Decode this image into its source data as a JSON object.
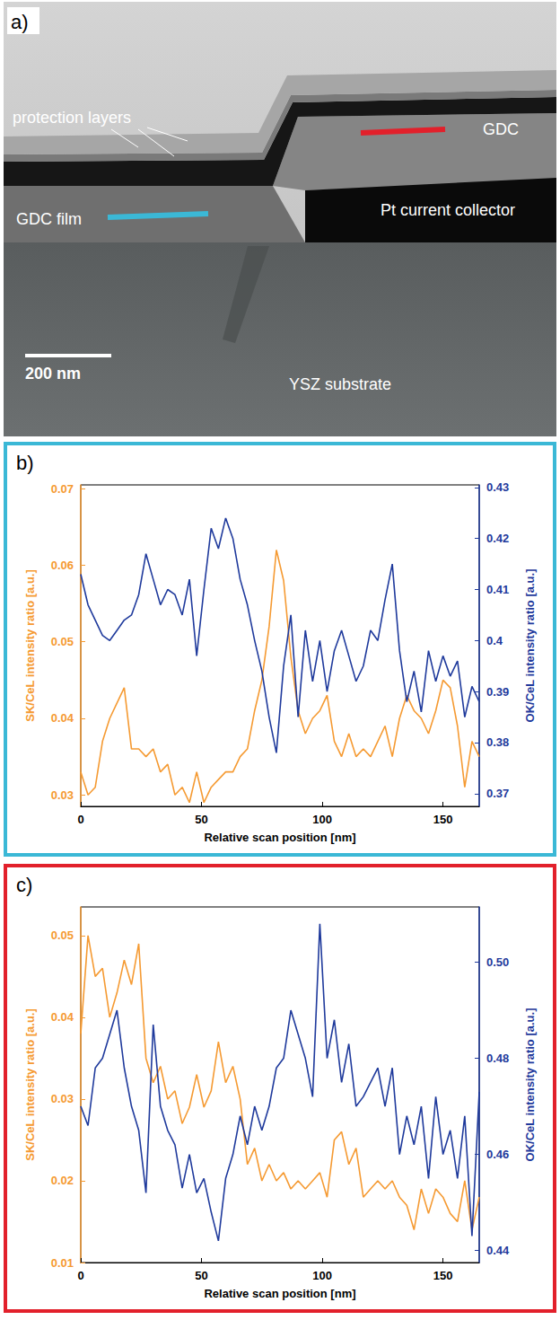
{
  "image_panel": {
    "panel_label": "a)",
    "labels": {
      "protection_layers": "protection layers",
      "gdc_film": "GDC film",
      "gdc": "GDC",
      "pt": "Pt current collector",
      "substrate": "YSZ substrate"
    },
    "scale_bar": "200 nm"
  },
  "chart_data": [
    {
      "type": "line",
      "panel_label": "b)",
      "xlabel": "Relative scan position [nm]",
      "ylabel": "SK/CeL intensity ratio [a.u.]",
      "y2label": "OK/CeL intensity ratio [a.u.]",
      "xlim": [
        0,
        165
      ],
      "xticks": [
        0,
        50,
        100,
        150
      ],
      "ylim": [
        0.0285,
        0.0705
      ],
      "yticks": [
        0.03,
        0.04,
        0.05,
        0.06,
        0.07
      ],
      "y2lim": [
        0.3675,
        0.4305
      ],
      "y2ticks": [
        0.37,
        0.38,
        0.39,
        0.4,
        0.41,
        0.42,
        0.43
      ],
      "grid": false,
      "x": [
        0,
        3,
        6,
        9,
        12,
        15,
        18,
        21,
        24,
        27,
        30,
        33,
        36,
        39,
        42,
        45,
        48,
        51,
        54,
        57,
        60,
        63,
        66,
        69,
        72,
        75,
        78,
        81,
        84,
        87,
        90,
        93,
        96,
        99,
        102,
        105,
        108,
        111,
        114,
        117,
        120,
        123,
        126,
        129,
        132,
        135,
        138,
        141,
        144,
        147,
        150,
        153,
        156,
        159,
        162,
        165
      ],
      "series": [
        {
          "color": "#f59a32",
          "axis": "y",
          "values": [
            0.033,
            0.03,
            0.031,
            0.037,
            0.04,
            0.042,
            0.044,
            0.036,
            0.036,
            0.035,
            0.036,
            0.033,
            0.034,
            0.03,
            0.031,
            0.029,
            0.033,
            0.029,
            0.031,
            0.032,
            0.033,
            0.033,
            0.035,
            0.036,
            0.041,
            0.045,
            0.052,
            0.062,
            0.058,
            0.048,
            0.041,
            0.038,
            0.04,
            0.041,
            0.043,
            0.037,
            0.035,
            0.038,
            0.035,
            0.036,
            0.035,
            0.037,
            0.039,
            0.035,
            0.04,
            0.043,
            0.041,
            0.04,
            0.038,
            0.041,
            0.045,
            0.044,
            0.039,
            0.031,
            0.037,
            0.035
          ]
        },
        {
          "color": "#1f3a9c",
          "axis": "y2",
          "values": [
            0.413,
            0.407,
            0.404,
            0.401,
            0.4,
            0.402,
            0.404,
            0.405,
            0.409,
            0.417,
            0.412,
            0.407,
            0.41,
            0.409,
            0.405,
            0.412,
            0.397,
            0.41,
            0.422,
            0.418,
            0.424,
            0.42,
            0.412,
            0.407,
            0.4,
            0.394,
            0.385,
            0.378,
            0.395,
            0.405,
            0.385,
            0.402,
            0.392,
            0.4,
            0.39,
            0.398,
            0.402,
            0.397,
            0.392,
            0.395,
            0.402,
            0.4,
            0.408,
            0.415,
            0.398,
            0.388,
            0.394,
            0.386,
            0.398,
            0.392,
            0.397,
            0.393,
            0.396,
            0.385,
            0.391,
            0.388
          ]
        }
      ]
    },
    {
      "type": "line",
      "panel_label": "c)",
      "xlabel": "Relative scan position [nm]",
      "ylabel": "SK/CeL intensity ratio [a.u.]",
      "y2label": "OK/CeL intensity ratio [a.u.]",
      "xlim": [
        0,
        165
      ],
      "xticks": [
        0,
        50,
        100,
        150
      ],
      "ylim": [
        0.01,
        0.0535
      ],
      "yticks": [
        0.01,
        0.02,
        0.03,
        0.04,
        0.05
      ],
      "y2lim": [
        0.4375,
        0.5115
      ],
      "y2ticks": [
        0.44,
        0.46,
        0.48,
        {
          "value": 0.5,
          "label": "0.50"
        }
      ],
      "grid": false,
      "x": [
        0,
        3,
        6,
        9,
        12,
        15,
        18,
        21,
        24,
        27,
        30,
        33,
        36,
        39,
        42,
        45,
        48,
        51,
        54,
        57,
        60,
        63,
        66,
        69,
        72,
        75,
        78,
        81,
        84,
        87,
        90,
        93,
        96,
        99,
        102,
        105,
        108,
        111,
        114,
        117,
        120,
        123,
        126,
        129,
        132,
        135,
        138,
        141,
        144,
        147,
        150,
        153,
        156,
        159,
        162,
        165
      ],
      "series": [
        {
          "color": "#f59a32",
          "axis": "y",
          "values": [
            0.038,
            0.05,
            0.045,
            0.046,
            0.04,
            0.043,
            0.047,
            0.044,
            0.049,
            0.035,
            0.032,
            0.034,
            0.03,
            0.031,
            0.027,
            0.029,
            0.033,
            0.029,
            0.031,
            0.037,
            0.032,
            0.034,
            0.03,
            0.022,
            0.024,
            0.02,
            0.022,
            0.02,
            0.021,
            0.019,
            0.02,
            0.019,
            0.02,
            0.021,
            0.018,
            0.025,
            0.026,
            0.022,
            0.024,
            0.018,
            0.019,
            0.02,
            0.019,
            0.02,
            0.018,
            0.017,
            0.014,
            0.019,
            0.016,
            0.019,
            0.018,
            0.016,
            0.015,
            0.02,
            0.014,
            0.018
          ]
        },
        {
          "color": "#1f3a9c",
          "axis": "y2",
          "values": [
            0.47,
            0.466,
            0.478,
            0.48,
            0.485,
            0.49,
            0.478,
            0.47,
            0.465,
            0.452,
            0.487,
            0.47,
            0.465,
            0.462,
            0.453,
            0.46,
            0.452,
            0.455,
            0.448,
            0.442,
            0.455,
            0.46,
            0.468,
            0.462,
            0.47,
            0.465,
            0.47,
            0.478,
            0.48,
            0.49,
            0.485,
            0.48,
            0.472,
            0.508,
            0.48,
            0.488,
            0.475,
            0.483,
            0.47,
            0.472,
            0.475,
            0.478,
            0.47,
            0.478,
            0.46,
            0.468,
            0.462,
            0.47,
            0.455,
            0.472,
            0.46,
            0.465,
            0.455,
            0.468,
            0.443,
            0.473
          ]
        }
      ]
    }
  ]
}
